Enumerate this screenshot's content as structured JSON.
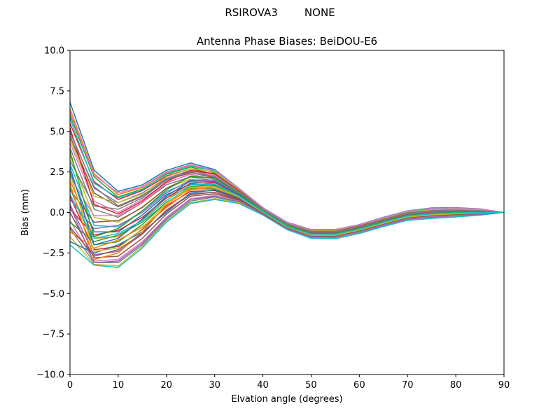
{
  "suptitle": "RSIROVA3        NONE",
  "chart_data": {
    "type": "line",
    "title": "Antenna Phase Biases: BeiDOU-E6",
    "xlabel": "Elvation angle (degrees)",
    "ylabel": "Bias (mm)",
    "xlim": [
      0,
      90
    ],
    "ylim": [
      -10,
      10
    ],
    "x": [
      0,
      5,
      10,
      15,
      20,
      25,
      30,
      35,
      40,
      45,
      50,
      55,
      60,
      65,
      70,
      75,
      80,
      85,
      90
    ],
    "xticks": [
      "0",
      "10",
      "20",
      "30",
      "40",
      "50",
      "60",
      "70",
      "80",
      "90"
    ],
    "yticks": [
      "10.0",
      "7.5",
      "5.0",
      "2.5",
      "0.0",
      "−2.5",
      "−5.0",
      "−7.5",
      "−10.0"
    ],
    "grid": false,
    "legend": "none",
    "colors": [
      "#1f77b4",
      "#ff7f0e",
      "#2ca02c",
      "#d62728",
      "#9467bd",
      "#8c564b",
      "#e377c2",
      "#7f7f7f",
      "#bcbd22",
      "#17becf"
    ],
    "series": [
      {
        "values": [
          6.8,
          2.6,
          1.3,
          1.7,
          2.6,
          3.05,
          2.65,
          1.5,
          0.3,
          -0.6,
          -1.05,
          -1.05,
          -0.75,
          -0.3,
          0.1,
          0.28,
          0.3,
          0.22,
          0.0
        ]
      },
      {
        "values": [
          6.4,
          2.4,
          1.1,
          1.55,
          2.45,
          2.9,
          2.55,
          1.45,
          0.28,
          -0.62,
          -1.08,
          -1.08,
          -0.78,
          -0.33,
          0.07,
          0.24,
          0.26,
          0.19,
          0.0
        ]
      },
      {
        "values": [
          6.0,
          2.2,
          0.95,
          1.45,
          2.35,
          2.8,
          2.45,
          1.4,
          0.25,
          -0.65,
          -1.1,
          -1.1,
          -0.8,
          -0.36,
          0.04,
          0.2,
          0.23,
          0.17,
          0.0
        ]
      },
      {
        "values": [
          5.5,
          1.9,
          0.8,
          1.35,
          2.25,
          2.7,
          2.35,
          1.35,
          0.22,
          -0.68,
          -1.13,
          -1.13,
          -0.82,
          -0.39,
          0.01,
          0.17,
          0.2,
          0.15,
          0.0
        ]
      },
      {
        "values": [
          5.0,
          1.5,
          0.6,
          1.2,
          2.1,
          2.6,
          2.25,
          1.3,
          0.2,
          -0.7,
          -1.16,
          -1.16,
          -0.85,
          -0.42,
          -0.02,
          0.14,
          0.17,
          0.13,
          0.0
        ]
      },
      {
        "values": [
          4.7,
          1.2,
          0.35,
          1.0,
          2.0,
          2.45,
          2.15,
          1.25,
          0.18,
          -0.72,
          -1.19,
          -1.19,
          -0.88,
          -0.45,
          -0.05,
          0.1,
          0.14,
          0.11,
          0.0
        ]
      },
      {
        "values": [
          4.3,
          0.7,
          0.0,
          0.8,
          1.85,
          2.35,
          2.05,
          1.2,
          0.15,
          -0.75,
          -1.22,
          -1.22,
          -0.9,
          -0.48,
          -0.08,
          0.07,
          0.11,
          0.09,
          0.0
        ]
      },
      {
        "values": [
          4.0,
          0.2,
          -0.3,
          0.6,
          1.7,
          2.2,
          1.95,
          1.15,
          0.12,
          -0.78,
          -1.25,
          -1.25,
          -0.93,
          -0.51,
          -0.11,
          0.03,
          0.08,
          0.07,
          0.0
        ]
      },
      {
        "values": [
          3.5,
          -0.3,
          -0.6,
          0.35,
          1.5,
          2.05,
          1.85,
          1.1,
          0.1,
          -0.8,
          -1.28,
          -1.28,
          -0.96,
          -0.54,
          -0.14,
          0.0,
          0.05,
          0.05,
          0.0
        ]
      },
      {
        "values": [
          3.0,
          -0.8,
          -0.9,
          0.1,
          1.3,
          1.9,
          1.75,
          1.05,
          0.08,
          -0.82,
          -1.31,
          -1.31,
          -0.99,
          -0.57,
          -0.17,
          -0.04,
          0.02,
          0.03,
          0.0
        ]
      },
      {
        "values": [
          2.5,
          -1.2,
          -1.2,
          -0.15,
          1.1,
          1.75,
          1.65,
          1.0,
          0.05,
          -0.85,
          -1.34,
          -1.34,
          -1.02,
          -0.6,
          -0.2,
          -0.07,
          -0.01,
          0.01,
          0.0
        ]
      },
      {
        "values": [
          2.0,
          -1.6,
          -1.5,
          -0.45,
          0.9,
          1.6,
          1.55,
          0.95,
          0.02,
          -0.88,
          -1.37,
          -1.37,
          -1.05,
          -0.63,
          -0.23,
          -0.1,
          -0.04,
          -0.01,
          0.0
        ]
      },
      {
        "values": [
          1.5,
          -2.0,
          -1.8,
          -0.75,
          0.65,
          1.45,
          1.45,
          0.9,
          0.0,
          -0.9,
          -1.4,
          -1.4,
          -1.08,
          -0.66,
          -0.27,
          -0.14,
          -0.07,
          -0.03,
          0.0
        ]
      },
      {
        "values": [
          1.0,
          -2.3,
          -2.1,
          -1.05,
          0.4,
          1.3,
          1.35,
          0.85,
          -0.03,
          -0.93,
          -1.43,
          -1.43,
          -1.11,
          -0.69,
          -0.3,
          -0.17,
          -0.1,
          -0.05,
          0.0
        ]
      },
      {
        "values": [
          0.5,
          -2.6,
          -2.4,
          -1.35,
          0.15,
          1.15,
          1.25,
          0.8,
          -0.06,
          -0.96,
          -1.46,
          -1.46,
          -1.14,
          -0.72,
          -0.33,
          -0.2,
          -0.13,
          -0.07,
          0.0
        ]
      },
      {
        "values": [
          0.0,
          -2.8,
          -2.7,
          -1.6,
          -0.1,
          1.0,
          1.15,
          0.75,
          -0.08,
          -0.98,
          -1.49,
          -1.49,
          -1.17,
          -0.75,
          -0.36,
          -0.24,
          -0.16,
          -0.09,
          0.0
        ]
      },
      {
        "values": [
          -0.5,
          -3.0,
          -2.9,
          -1.8,
          -0.3,
          0.85,
          1.05,
          0.7,
          -0.1,
          -1.0,
          -1.52,
          -1.52,
          -1.2,
          -0.78,
          -0.4,
          -0.27,
          -0.19,
          -0.11,
          0.0
        ]
      },
      {
        "values": [
          -1.0,
          -3.1,
          -3.1,
          -2.0,
          -0.45,
          0.7,
          0.95,
          0.65,
          -0.12,
          -1.02,
          -1.55,
          -1.55,
          -1.23,
          -0.81,
          -0.43,
          -0.3,
          -0.22,
          -0.13,
          0.0
        ]
      },
      {
        "values": [
          -1.5,
          -3.2,
          -3.3,
          -2.1,
          -0.55,
          0.6,
          0.85,
          0.6,
          -0.14,
          -1.04,
          -1.58,
          -1.58,
          -1.26,
          -0.84,
          -0.46,
          -0.34,
          -0.25,
          -0.15,
          0.0
        ]
      },
      {
        "values": [
          -2.0,
          -3.25,
          -3.4,
          -2.2,
          -0.6,
          0.55,
          0.8,
          0.55,
          -0.16,
          -1.06,
          -1.6,
          -1.62,
          -1.3,
          -0.87,
          -0.49,
          -0.37,
          -0.28,
          -0.17,
          0.0
        ]
      },
      {
        "values": [
          -1.8,
          -2.5,
          -2.0,
          -1.2,
          0.0,
          1.2,
          1.4,
          0.9,
          -0.02,
          -0.92,
          -1.42,
          -1.42,
          -1.1,
          -0.68,
          -0.3,
          -0.16,
          -0.09,
          -0.04,
          0.0
        ]
      },
      {
        "values": [
          -1.2,
          -2.2,
          -1.7,
          -0.9,
          0.3,
          1.4,
          1.55,
          0.95,
          0.02,
          -0.88,
          -1.38,
          -1.38,
          -1.06,
          -0.64,
          -0.25,
          -0.12,
          -0.05,
          -0.02,
          0.0
        ]
      },
      {
        "values": [
          -0.6,
          -1.8,
          -1.4,
          -0.6,
          0.6,
          1.6,
          1.7,
          1.02,
          0.05,
          -0.85,
          -1.34,
          -1.34,
          -1.02,
          -0.6,
          -0.21,
          -0.08,
          -0.02,
          0.0,
          0.0
        ]
      },
      {
        "values": [
          0.2,
          -1.4,
          -1.1,
          -0.3,
          0.9,
          1.8,
          1.85,
          1.08,
          0.08,
          -0.82,
          -1.3,
          -1.3,
          -0.98,
          -0.56,
          -0.17,
          -0.04,
          0.01,
          0.02,
          0.0
        ]
      },
      {
        "values": [
          0.8,
          -1.0,
          -0.8,
          0.0,
          1.2,
          2.0,
          2.0,
          1.15,
          0.11,
          -0.79,
          -1.26,
          -1.26,
          -0.94,
          -0.52,
          -0.13,
          0.0,
          0.05,
          0.04,
          0.0
        ]
      },
      {
        "values": [
          1.4,
          -0.6,
          -0.5,
          0.3,
          1.5,
          2.2,
          2.15,
          1.22,
          0.14,
          -0.76,
          -1.22,
          -1.22,
          -0.9,
          -0.48,
          -0.09,
          0.04,
          0.08,
          0.06,
          0.0
        ]
      },
      {
        "values": [
          2.2,
          -0.2,
          -0.2,
          0.6,
          1.8,
          2.4,
          2.3,
          1.3,
          0.17,
          -0.73,
          -1.18,
          -1.18,
          -0.86,
          -0.44,
          -0.05,
          0.08,
          0.12,
          0.09,
          0.0
        ]
      },
      {
        "values": [
          3.2,
          0.4,
          0.2,
          0.9,
          2.0,
          2.55,
          2.4,
          1.36,
          0.2,
          -0.7,
          -1.14,
          -1.14,
          -0.82,
          -0.4,
          -0.01,
          0.13,
          0.16,
          0.12,
          0.0
        ]
      },
      {
        "values": [
          4.5,
          1.0,
          0.6,
          1.15,
          2.2,
          2.7,
          2.5,
          1.42,
          0.23,
          -0.67,
          -1.1,
          -1.1,
          -0.78,
          -0.36,
          0.03,
          0.18,
          0.21,
          0.16,
          0.0
        ]
      },
      {
        "values": [
          5.8,
          1.8,
          0.9,
          1.4,
          2.4,
          2.85,
          2.58,
          1.47,
          0.26,
          -0.64,
          -1.07,
          -1.07,
          -0.76,
          -0.33,
          0.06,
          0.23,
          0.26,
          0.2,
          0.0
        ]
      },
      {
        "values": [
          2.8,
          -2.0,
          -1.6,
          -0.4,
          1.0,
          1.95,
          1.9,
          1.1,
          0.06,
          -0.86,
          -1.36,
          -1.36,
          -1.04,
          -0.62,
          -0.23,
          -0.1,
          -0.04,
          -0.02,
          0.0
        ]
      },
      {
        "values": [
          1.8,
          -2.9,
          -2.5,
          -1.2,
          0.5,
          1.5,
          1.6,
          0.97,
          0.0,
          -0.92,
          -1.44,
          -1.44,
          -1.12,
          -0.7,
          -0.31,
          -0.18,
          -0.11,
          -0.06,
          0.0
        ]
      },
      {
        "values": [
          3.8,
          -1.5,
          -1.0,
          0.1,
          1.4,
          2.25,
          2.1,
          1.2,
          0.1,
          -0.8,
          -1.3,
          -1.3,
          -0.98,
          -0.56,
          -0.18,
          -0.05,
          0.0,
          0.02,
          0.0
        ]
      },
      {
        "values": [
          5.2,
          0.5,
          -0.1,
          0.7,
          1.9,
          2.6,
          2.38,
          1.35,
          0.19,
          -0.71,
          -1.17,
          -1.17,
          -0.85,
          -0.43,
          -0.04,
          0.1,
          0.14,
          0.1,
          0.0
        ]
      },
      {
        "values": [
          0.4,
          -3.1,
          -3.0,
          -1.9,
          -0.35,
          0.8,
          1.0,
          0.68,
          -0.11,
          -1.01,
          -1.53,
          -1.54,
          -1.22,
          -0.8,
          -0.42,
          -0.29,
          -0.21,
          -0.12,
          0.0
        ]
      },
      {
        "values": [
          -0.9,
          -2.7,
          -2.3,
          -1.3,
          0.1,
          1.1,
          1.25,
          0.8,
          -0.05,
          -0.95,
          -1.45,
          -1.45,
          -1.13,
          -0.71,
          -0.33,
          -0.2,
          -0.13,
          -0.07,
          0.0
        ]
      },
      {
        "values": [
          6.2,
          2.3,
          1.2,
          1.6,
          2.5,
          2.95,
          2.6,
          1.48,
          0.29,
          -0.61,
          -1.06,
          -1.06,
          -0.77,
          -0.32,
          0.08,
          0.26,
          0.28,
          0.21,
          0.0
        ]
      },
      {
        "values": [
          4.9,
          1.6,
          0.4,
          1.05,
          2.05,
          2.5,
          2.2,
          1.27,
          0.18,
          -0.72,
          -1.19,
          -1.19,
          -0.88,
          -0.45,
          -0.05,
          0.11,
          0.15,
          0.11,
          0.0
        ]
      },
      {
        "values": [
          2.4,
          -2.4,
          -2.2,
          -1.0,
          0.6,
          1.55,
          1.6,
          0.96,
          0.01,
          -0.9,
          -1.41,
          -1.41,
          -1.09,
          -0.67,
          -0.28,
          -0.15,
          -0.08,
          -0.04,
          0.0
        ]
      },
      {
        "values": [
          1.1,
          -1.6,
          -1.3,
          -0.5,
          0.75,
          1.7,
          1.75,
          1.02,
          0.05,
          -0.86,
          -1.35,
          -1.35,
          -1.03,
          -0.61,
          -0.22,
          -0.09,
          -0.03,
          -0.01,
          0.0
        ]
      }
    ]
  }
}
